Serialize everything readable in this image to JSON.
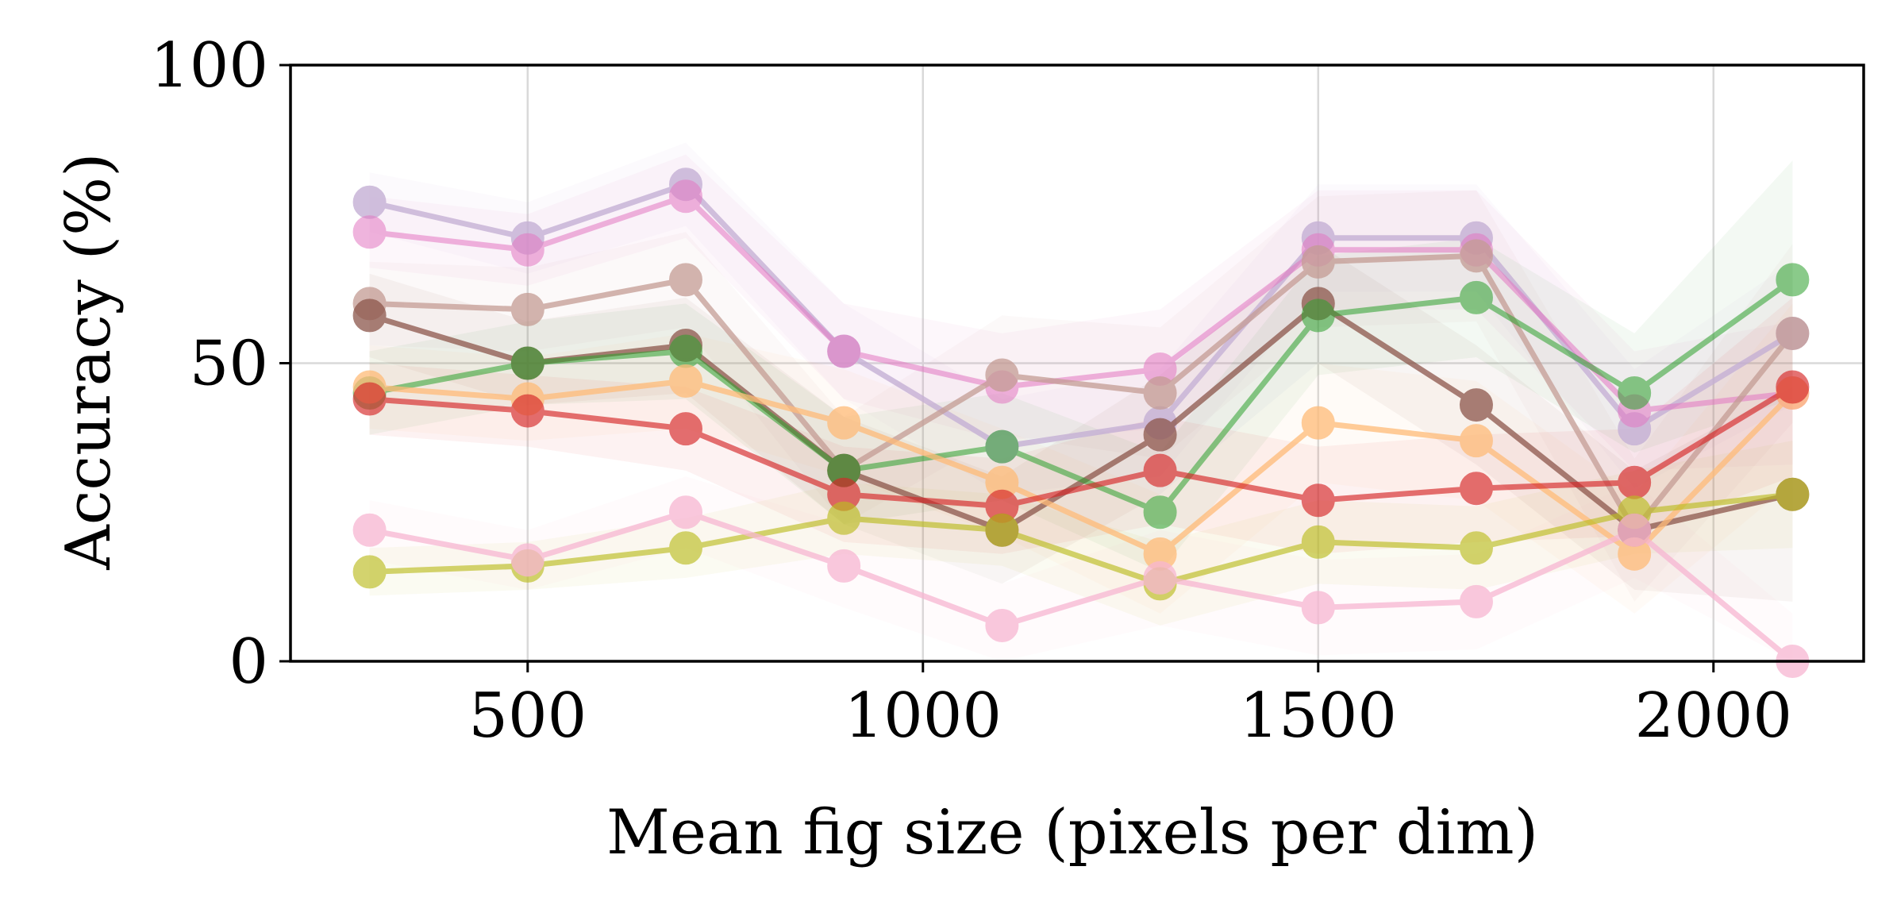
{
  "chart_data": {
    "type": "line",
    "title": "",
    "xlabel": "Mean fig size (pixels per dim)",
    "ylabel": "Accuracy (%)",
    "xlim": [
      200,
      2190
    ],
    "ylim": [
      0,
      100
    ],
    "xticks": [
      500,
      1000,
      1500,
      2000
    ],
    "yticks": [
      0,
      50,
      100
    ],
    "grid": true,
    "legend": "none",
    "x": [
      300,
      500,
      700,
      900,
      1100,
      1300,
      1500,
      1700,
      1900,
      2100
    ],
    "series": [
      {
        "color": "#c5b0d5",
        "alpha": 0.8,
        "values": [
          77,
          71,
          80,
          52,
          36,
          40,
          71,
          71,
          39,
          55
        ],
        "band": [
          5,
          6,
          7,
          8,
          8,
          9,
          9,
          9,
          10,
          12
        ]
      },
      {
        "color": "#e377c2",
        "alpha": 0.55,
        "values": [
          72,
          69,
          78,
          52,
          46,
          49,
          69,
          69,
          42,
          45
        ],
        "band": [
          6,
          6,
          7,
          8,
          9,
          10,
          10,
          10,
          10,
          12
        ]
      },
      {
        "color": "#c49c94",
        "alpha": 0.75,
        "values": [
          60,
          59,
          64,
          32,
          48,
          45,
          67,
          68,
          22,
          55
        ],
        "band": [
          7,
          7,
          8,
          9,
          10,
          11,
          11,
          11,
          12,
          15
        ]
      },
      {
        "color": "#8c564b",
        "alpha": 0.75,
        "values": [
          58,
          50,
          53,
          32,
          22,
          38,
          60,
          43,
          22,
          28
        ],
        "band": [
          7,
          7,
          8,
          9,
          9,
          10,
          10,
          10,
          10,
          18
        ]
      },
      {
        "color": "#2ca02c",
        "alpha": 0.55,
        "values": [
          45,
          50,
          52,
          32,
          36,
          25,
          58,
          61,
          45,
          64
        ],
        "band": [
          7,
          7,
          8,
          9,
          9,
          10,
          10,
          10,
          10,
          20
        ]
      },
      {
        "color": "#ffbb78",
        "alpha": 0.75,
        "values": [
          46,
          44,
          47,
          40,
          30,
          18,
          40,
          37,
          18,
          45
        ],
        "band": [
          7,
          7,
          8,
          9,
          9,
          10,
          10,
          10,
          10,
          15
        ]
      },
      {
        "color": "#d62728",
        "alpha": 0.65,
        "values": [
          44,
          42,
          39,
          28,
          26,
          32,
          27,
          29,
          30,
          46
        ],
        "band": [
          6,
          6,
          7,
          8,
          8,
          9,
          9,
          9,
          9,
          15
        ]
      },
      {
        "color": "#bcbd22",
        "alpha": 0.65,
        "values": [
          15,
          16,
          19,
          24,
          22,
          13,
          20,
          19,
          25,
          28
        ],
        "band": [
          4,
          4,
          5,
          6,
          6,
          7,
          7,
          7,
          7,
          9
        ]
      },
      {
        "color": "#f7b6d2",
        "alpha": 0.75,
        "values": [
          22,
          17,
          25,
          16,
          6,
          14,
          9,
          10,
          22,
          0
        ],
        "band": [
          5,
          5,
          6,
          7,
          7,
          8,
          8,
          8,
          8,
          8
        ]
      }
    ]
  }
}
